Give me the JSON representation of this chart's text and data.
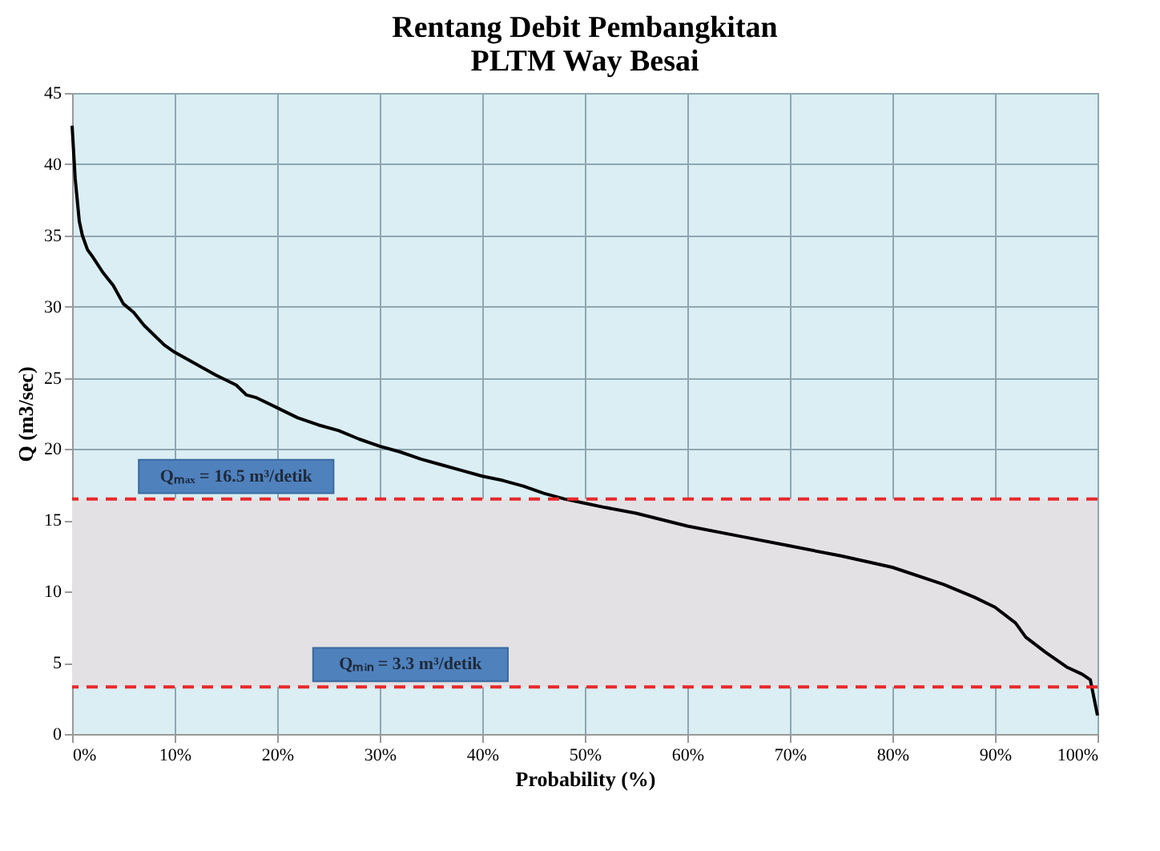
{
  "chart_data": {
    "type": "line",
    "title": "Rentang Debit Pembangkitan\nPLTM Way Besai",
    "xlabel": "Probability (%)",
    "ylabel": "Q (m3/sec)",
    "x": [
      0,
      0.3,
      0.7,
      1,
      1.5,
      2,
      3,
      4,
      5,
      6,
      7,
      8,
      9,
      10,
      12,
      14,
      16,
      17,
      18,
      20,
      22,
      24,
      26,
      28,
      30,
      32,
      34,
      36,
      38,
      40,
      42,
      44,
      46,
      48,
      50,
      52,
      55,
      60,
      65,
      70,
      75,
      80,
      85,
      88,
      90,
      92,
      93,
      95,
      97,
      98.5,
      99.3,
      100
    ],
    "series": [
      {
        "color": "#000000",
        "values": [
          42.7,
          39,
          36,
          35,
          34,
          33.5,
          32.4,
          31.5,
          30.2,
          29.6,
          28.7,
          28,
          27.3,
          26.8,
          26,
          25.2,
          24.5,
          23.8,
          23.6,
          22.9,
          22.2,
          21.7,
          21.3,
          20.7,
          20.2,
          19.8,
          19.3,
          18.9,
          18.5,
          18.1,
          17.8,
          17.4,
          16.9,
          16.5,
          16.2,
          15.9,
          15.5,
          14.6,
          13.9,
          13.2,
          12.5,
          11.7,
          10.5,
          9.6,
          8.9,
          7.8,
          6.8,
          5.7,
          4.7,
          4.2,
          3.8,
          1.3
        ]
      }
    ],
    "xlim": [
      0,
      100
    ],
    "xticks": [
      {
        "value": 0,
        "label": "0%"
      },
      {
        "value": 10,
        "label": "10%"
      },
      {
        "value": 20,
        "label": "20%"
      },
      {
        "value": 30,
        "label": "30%"
      },
      {
        "value": 40,
        "label": "40%"
      },
      {
        "value": 50,
        "label": "50%"
      },
      {
        "value": 60,
        "label": "60%"
      },
      {
        "value": 70,
        "label": "70%"
      },
      {
        "value": 80,
        "label": "80%"
      },
      {
        "value": 90,
        "label": "90%"
      },
      {
        "value": 100,
        "label": "100%"
      }
    ],
    "ylim": [
      0,
      45
    ],
    "yticks": [
      0,
      5,
      10,
      15,
      20,
      25,
      30,
      35,
      40,
      45
    ],
    "ref_lines": [
      {
        "axis": "y",
        "value": 16.5,
        "color": "#e8292b",
        "line_style": "dashed",
        "label": "Qₘₐₓ = 16.5 m³/detik"
      },
      {
        "axis": "y",
        "value": 3.3,
        "color": "#e8292b",
        "line_style": "dashed",
        "label": "Qₘᵢₙ = 3.3 m³/detik"
      }
    ],
    "bands": [
      {
        "axis": "y",
        "from": 3.3,
        "to": 16.5,
        "color": "#e4e1e4"
      }
    ],
    "grid": true,
    "marker": "none",
    "line_style": "solid"
  }
}
